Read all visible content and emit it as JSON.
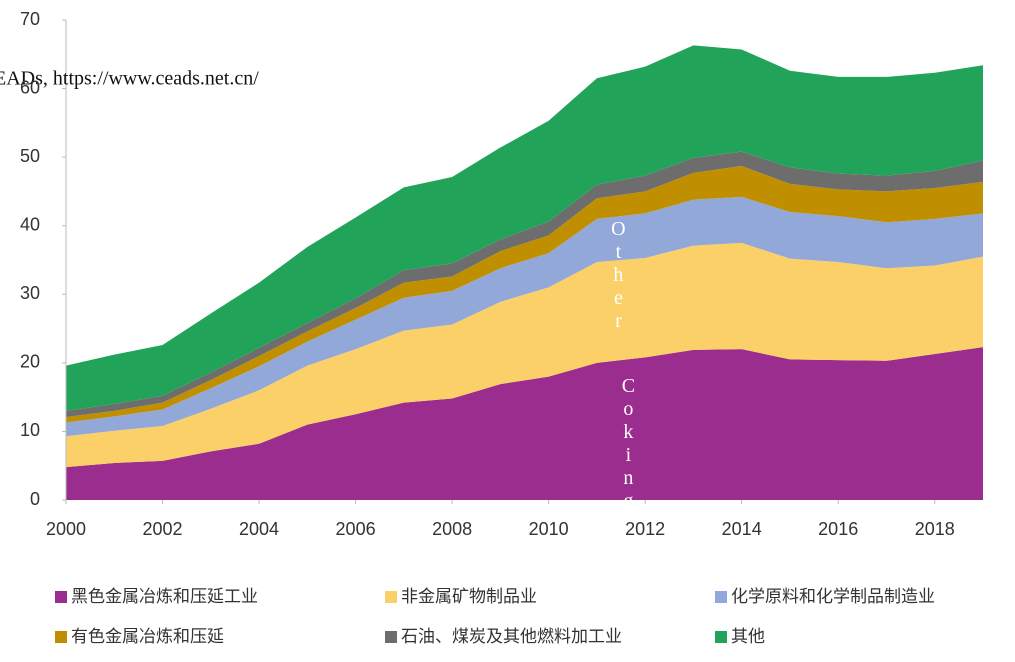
{
  "chart_data": {
    "type": "stacked_area",
    "source": "EADs, https://www.ceads.net.cn/",
    "annotations": [
      "Other",
      "Coking"
    ],
    "x": [
      2000,
      2001,
      2002,
      2003,
      2004,
      2005,
      2006,
      2007,
      2008,
      2009,
      2010,
      2011,
      2012,
      2013,
      2014,
      2015,
      2016,
      2017,
      2018,
      2019
    ],
    "xlim": [
      2000,
      2019
    ],
    "xticks": [
      2000,
      2002,
      2004,
      2006,
      2008,
      2010,
      2012,
      2014,
      2016,
      2018
    ],
    "ylim": [
      0,
      70
    ],
    "yticks": [
      0,
      10,
      20,
      30,
      40,
      50,
      60,
      70
    ],
    "series": [
      {
        "name": "黑色金属冶炼和压延工业",
        "color": "#9b2d8f",
        "values": [
          4.8,
          5.4,
          5.7,
          7.1,
          8.2,
          11,
          12.5,
          14.2,
          14.8,
          16.9,
          18,
          20,
          20.8,
          21.9,
          22,
          20.5,
          20.4,
          20.3,
          21.3,
          22.3
        ]
      },
      {
        "name": "非金属矿物制品业",
        "color": "#fcd068",
        "values": [
          4.5,
          4.7,
          5.1,
          6.2,
          7.8,
          8.6,
          9.5,
          10.5,
          10.8,
          12,
          13,
          14.7,
          14.5,
          15.2,
          15.5,
          14.7,
          14.3,
          13.5,
          12.9,
          13.2
        ]
      },
      {
        "name": "化学原料和化学制品制造业",
        "color": "#91a8d9",
        "values": [
          2,
          2.1,
          2.4,
          3,
          3.5,
          3.5,
          4.3,
          4.8,
          4.9,
          4.9,
          5,
          6.3,
          6.5,
          6.7,
          6.7,
          6.8,
          6.7,
          6.7,
          6.8,
          6.3
        ]
      },
      {
        "name": "有色金属冶炼和压延",
        "color": "#c08f00",
        "values": [
          0.8,
          0.8,
          1,
          1.2,
          1.5,
          1.5,
          1.7,
          2.2,
          2.1,
          2.5,
          2.6,
          3,
          3.2,
          3.9,
          4.5,
          4.1,
          3.9,
          4.5,
          4.5,
          4.6
        ]
      },
      {
        "name": "石油、煤炭及其他燃料加工业",
        "color": "#6d6d6d",
        "values": [
          0.9,
          1,
          1,
          1.1,
          1.2,
          1.2,
          1.4,
          1.8,
          1.9,
          1.7,
          2,
          2,
          2.3,
          2.2,
          2.1,
          2.4,
          2.3,
          2.3,
          2.5,
          3.1
        ]
      },
      {
        "name": "其他",
        "color": "#22a35a",
        "values": [
          6.6,
          7.2,
          7.4,
          8.6,
          9.5,
          11.1,
          11.8,
          12.1,
          12.6,
          13.4,
          14.7,
          15.5,
          15.9,
          16.4,
          14.9,
          14.1,
          14.1,
          14.4,
          14.3,
          13.9
        ]
      }
    ]
  }
}
